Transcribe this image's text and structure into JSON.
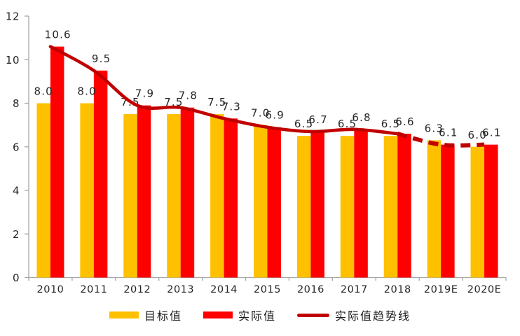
{
  "chart_data": {
    "type": "bar",
    "title": "",
    "xlabel": "",
    "ylabel": "",
    "categories": [
      "2010",
      "2011",
      "2012",
      "2013",
      "2014",
      "2015",
      "2016",
      "2017",
      "2018",
      "2019E",
      "2020E"
    ],
    "series": [
      {
        "name": "目标值",
        "kind": "bar",
        "color": "#FFC000",
        "values": [
          8.0,
          8.0,
          7.5,
          7.5,
          7.5,
          7.0,
          6.5,
          6.5,
          6.5,
          6.3,
          6.0
        ]
      },
      {
        "name": "实际值",
        "kind": "bar",
        "color": "#FF0000",
        "values": [
          10.6,
          9.5,
          7.9,
          7.8,
          7.3,
          6.9,
          6.7,
          6.8,
          6.6,
          6.1,
          6.1
        ]
      },
      {
        "name": "实际值趋势线",
        "kind": "line",
        "color": "#C00000",
        "values": [
          10.6,
          9.5,
          7.9,
          7.8,
          7.3,
          6.9,
          6.7,
          6.8,
          6.6,
          6.1,
          6.1
        ],
        "solid_until_index": 8
      }
    ],
    "ylim": [
      0,
      12
    ],
    "yticks": [
      0,
      2,
      4,
      6,
      8,
      10,
      12
    ],
    "grid": false,
    "data_labels": true,
    "label_decimals": 1,
    "legend_position": "bottom",
    "axis_color": "#A6A6A6",
    "text_color": "#262626"
  }
}
